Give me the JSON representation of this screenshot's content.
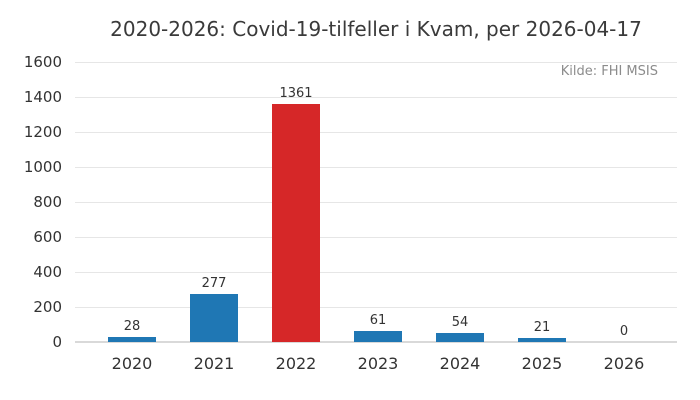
{
  "title": "2020-2026: Covid-19-tilfeller i Kvam, per 2026-04-17",
  "source": "Kilde: FHI MSIS",
  "colors": {
    "background": "#ffffff",
    "bar_default": "#1f77b4",
    "bar_highlight": "#d62728",
    "gridline": "#e6e6e6",
    "baseline": "#d9d9d9",
    "text": "#333333",
    "muted_text": "#8c8c8c"
  },
  "chart_data": {
    "type": "bar",
    "title": "2020-2026: Covid-19-tilfeller i Kvam, per 2026-04-17",
    "annotation": "Kilde: FHI MSIS",
    "categories": [
      "2020",
      "2021",
      "2022",
      "2023",
      "2024",
      "2025",
      "2026"
    ],
    "values": [
      28,
      277,
      1361,
      61,
      54,
      21,
      0
    ],
    "bar_colors": [
      "#1f77b4",
      "#1f77b4",
      "#d62728",
      "#1f77b4",
      "#1f77b4",
      "#1f77b4",
      "#1f77b4"
    ],
    "data_labels": [
      28,
      277,
      1361,
      61,
      54,
      21,
      0
    ],
    "xlabel": "",
    "ylabel": "",
    "ylim": [
      0,
      1600
    ],
    "yticks": [
      0,
      200,
      400,
      600,
      800,
      1000,
      1200,
      1400,
      1600
    ],
    "grid": "horizontal",
    "legend_position": "none"
  }
}
